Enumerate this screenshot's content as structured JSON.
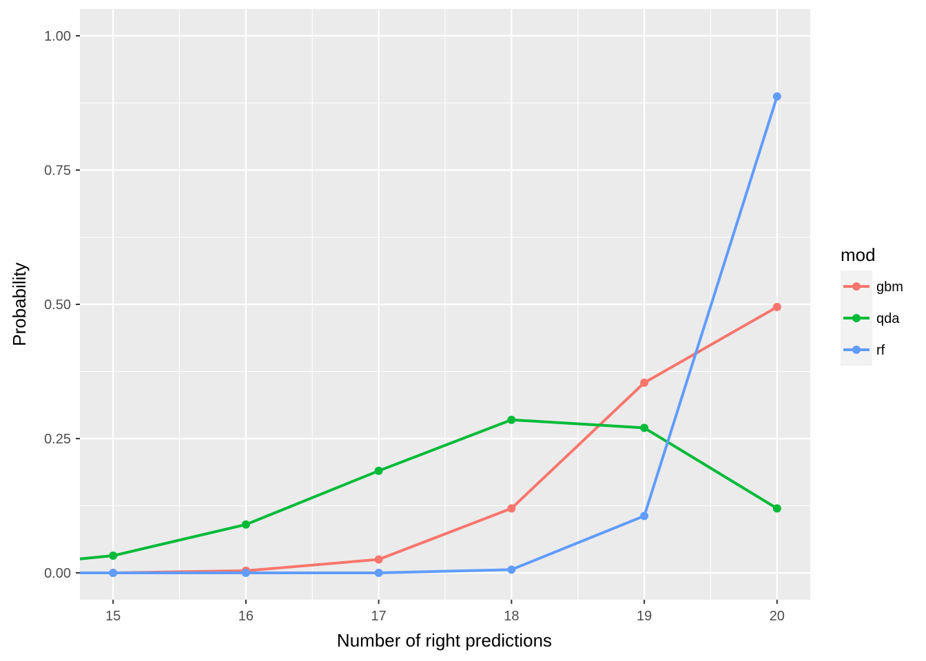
{
  "chart_data": {
    "type": "line",
    "title": "",
    "xlabel": "Number of right predictions",
    "ylabel": "Probability",
    "xlim": [
      14.75,
      20.25
    ],
    "ylim": [
      -0.05,
      1.05
    ],
    "x_ticks": [
      15,
      16,
      17,
      18,
      19,
      20
    ],
    "x_tick_labels": [
      "15",
      "16",
      "17",
      "18",
      "19",
      "20"
    ],
    "y_ticks": [
      0,
      0.25,
      0.5,
      0.75,
      1.0
    ],
    "y_tick_labels": [
      "0.00",
      "0.25",
      "0.50",
      "0.75",
      "1.00"
    ],
    "grid": true,
    "legend": {
      "title": "mod",
      "position": "right"
    },
    "series": [
      {
        "name": "gbm",
        "color": "#F8766D",
        "x": [
          14,
          15,
          16,
          17,
          18,
          19,
          20
        ],
        "y": [
          0.0,
          0.0,
          0.004,
          0.025,
          0.12,
          0.354,
          0.495
        ]
      },
      {
        "name": "qda",
        "color": "#00BA38",
        "x": [
          14,
          15,
          16,
          17,
          18,
          19,
          20
        ],
        "y": [
          0.008,
          0.032,
          0.09,
          0.19,
          0.285,
          0.27,
          0.12
        ]
      },
      {
        "name": "rf",
        "color": "#619CFF",
        "x": [
          14,
          15,
          16,
          17,
          18,
          19,
          20
        ],
        "y": [
          0.0,
          0.0,
          0.0,
          0.0,
          0.006,
          0.106,
          0.887
        ]
      }
    ]
  }
}
